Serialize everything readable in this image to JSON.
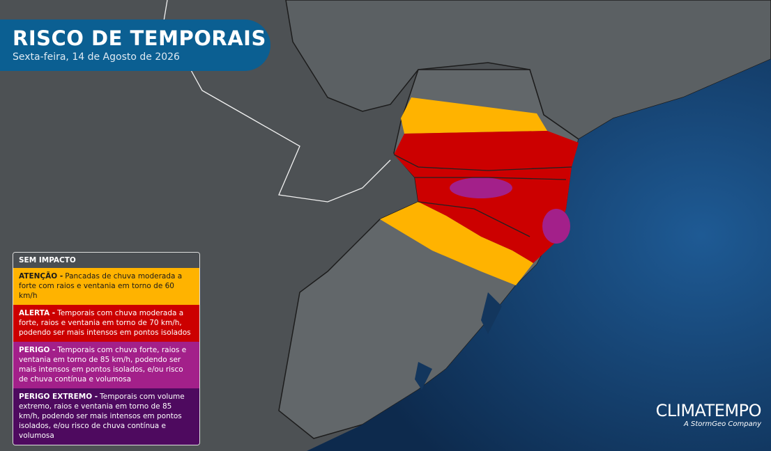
{
  "header": {
    "title": "RISCO DE TEMPORAIS",
    "subtitle": "Sexta-feira, 14 de Agosto de 2026"
  },
  "legend": {
    "title": "SEM IMPACTO",
    "levels": [
      {
        "label": "ATENÇÃO -",
        "text": "Pancadas de chuva moderada a forte com raios e ventania em torno de 60 km/h",
        "color": "#ffb300",
        "text_color": "#1a1a1a"
      },
      {
        "label": "ALERTA -",
        "text": "Temporais com chuva moderada a forte, raios e ventania em torno de 70 km/h, podendo ser mais intensos em pontos isolados",
        "color": "#cc0000",
        "text_color": "#ffffff"
      },
      {
        "label": "PERIGO -",
        "text": "Temporais com chuva forte, raios e ventania em torno de 85 km/h, podendo ser mais intensos em pontos isolados, e/ou risco de chuva contínua e volumosa",
        "color": "#a3208a",
        "text_color": "#ffffff"
      },
      {
        "label": "PERIGO EXTREMO -",
        "text": "Temporais com volume extremo, raios e ventania em torno de 85 km/h, podendo ser mais intensos em pontos isolados, e/ou risco de chuva contínua e volumosa",
        "color": "#4e0a5f",
        "text_color": "#ffffff"
      }
    ]
  },
  "brand": {
    "name": "CLIMATEMPO",
    "tagline": "A StormGeo Company"
  }
}
